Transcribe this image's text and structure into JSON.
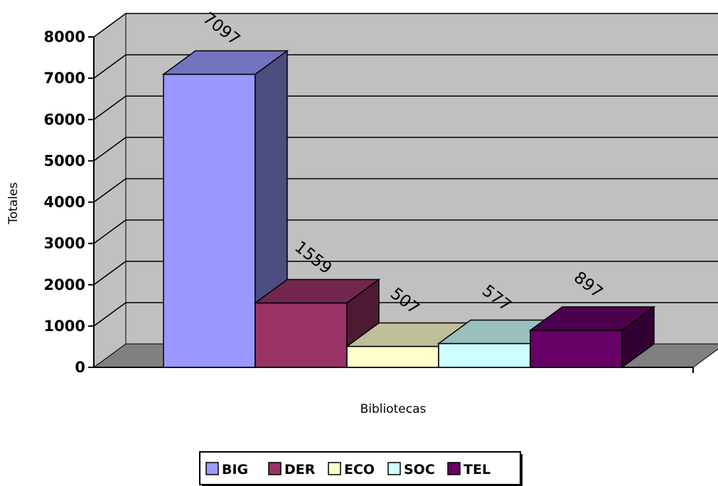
{
  "chart_data": {
    "type": "bar",
    "categories": [
      "BIG",
      "DER",
      "ECO",
      "SOC",
      "TEL"
    ],
    "values": [
      7097,
      1559,
      507,
      577,
      897
    ],
    "data_labels": [
      "7097",
      "1559",
      "507",
      "577",
      "897"
    ],
    "xlabel": "Bibliotecas",
    "ylabel": "Totales",
    "ylim": [
      0,
      8000
    ],
    "yticks": [
      "0",
      "1000",
      "2000",
      "3000",
      "4000",
      "5000",
      "6000",
      "7000",
      "8000"
    ],
    "grid": true,
    "legend_position": "bottom",
    "style": "3d-column",
    "colors": [
      "#9999FF",
      "#993366",
      "#FFFFCC",
      "#CCFFFF",
      "#660066"
    ],
    "wall_color": "#C0C0C0",
    "floor_color": "#808080"
  }
}
